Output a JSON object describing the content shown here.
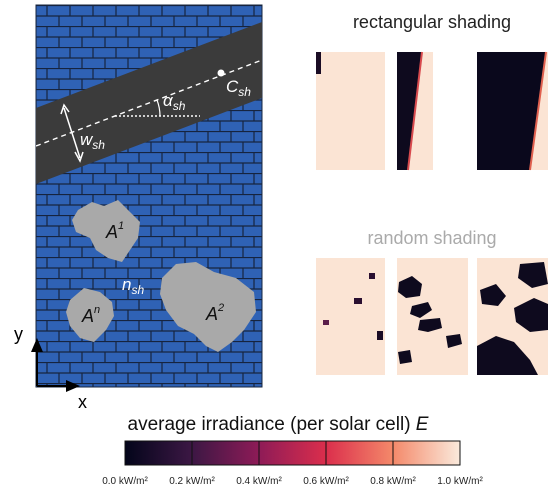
{
  "left_panel": {
    "shade_center": {
      "main": "C",
      "sub": "sh"
    },
    "shade_angle": {
      "main": "α",
      "sub": "sh"
    },
    "shade_width": {
      "main": "w",
      "sub": "sh"
    },
    "cluster_1": {
      "main": "A",
      "sup": "1"
    },
    "cluster_n": {
      "main": "A",
      "sup": "n"
    },
    "cluster_2": {
      "main": "A",
      "sup": "2"
    },
    "cluster_count": {
      "main": "n",
      "sub": "sh"
    },
    "y_axis": "y",
    "x_axis": "x"
  },
  "right_panel": {
    "top_title": "rectangular shading",
    "bottom_title": "random shading"
  },
  "colorbar": {
    "title": "average irradiance (per solar cell) ",
    "symbol": "E",
    "range": [
      0,
      1
    ],
    "ticks": [
      {
        "value": 0,
        "label": "0.0 kW/m²"
      },
      {
        "value": 0.2,
        "label": "0.2 kW/m²"
      },
      {
        "value": 0.4,
        "label": "0.4 kW/m²"
      },
      {
        "value": 0.6,
        "label": "0.6 kW/m²"
      },
      {
        "value": 0.8,
        "label": "0.8 kW/m²"
      },
      {
        "value": 1,
        "label": "1.0 kW/m²"
      }
    ]
  }
}
